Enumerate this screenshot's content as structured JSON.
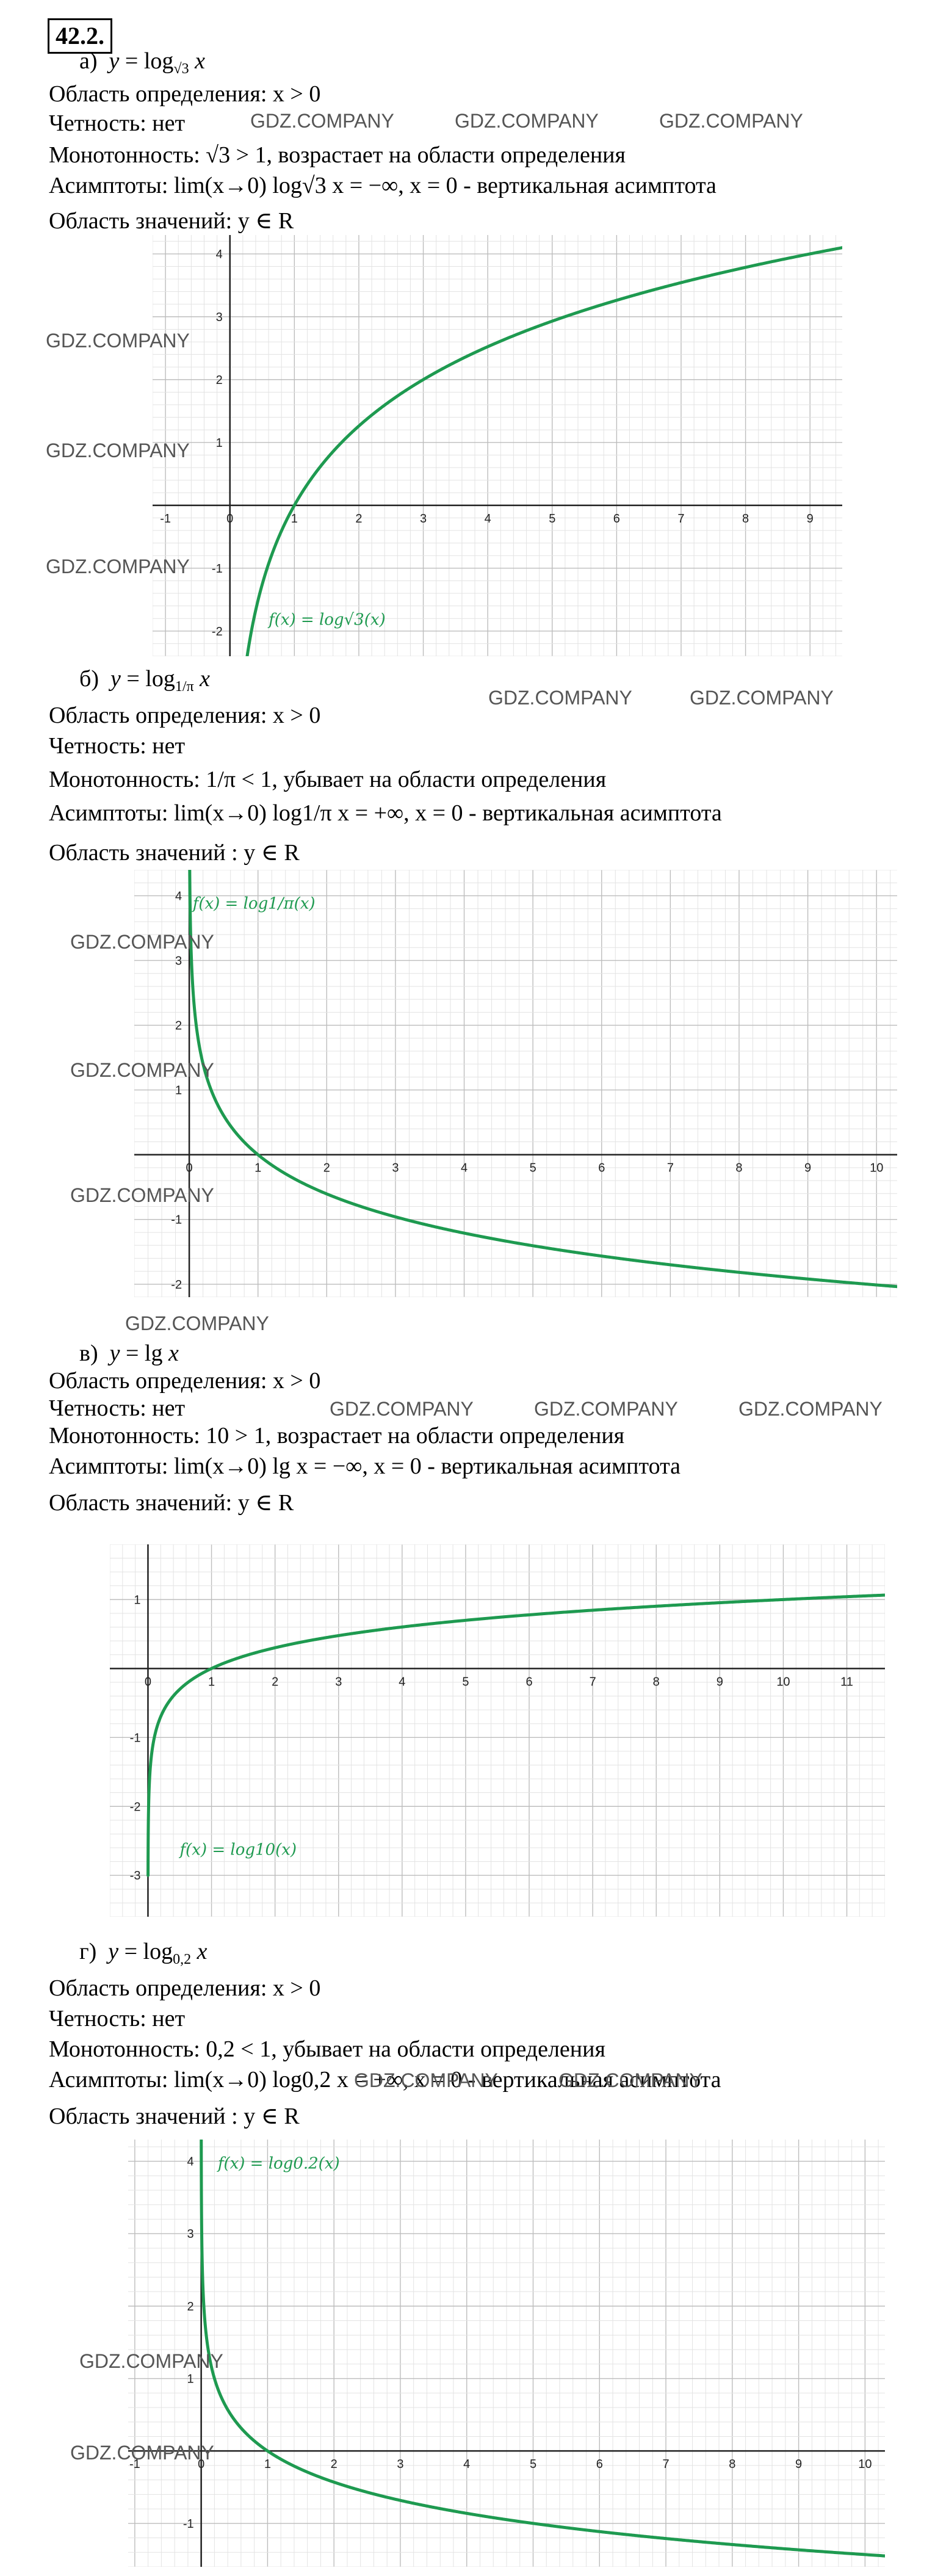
{
  "problem": "42.2.",
  "watermark": "GDZ.COMPANY",
  "sections": [
    {
      "letter": "а)",
      "func": "y = log√3 x",
      "domain": "Область определения: x > 0",
      "parity": "Четность: нет",
      "mono": "Монотонность: √3 > 1, возрастает на области определения",
      "asym": "Асимптоты: lim(x→0) log√3 x = −∞, x = 0 - вертикальная асимптота",
      "range": "Область значений: y ∈ R",
      "legend": "f(x) = log√3(x)"
    },
    {
      "letter": "б)",
      "func": "y = log1/π x",
      "domain": "Область определения: x > 0",
      "parity": "Четность: нет",
      "mono": "Монотонность: 1/π < 1, убывает на области определения",
      "asym": "Асимптоты: lim(x→0) log1/π x = +∞, x = 0 - вертикальная асимптота",
      "range": "Область значений : y ∈ R",
      "legend": "f(x) = log1/π(x)"
    },
    {
      "letter": "в)",
      "func": "y = lg x",
      "domain": "Область определения: x > 0",
      "parity": "Четность: нет",
      "mono": "Монотонность: 10 > 1, возрастает на области определения",
      "asym": "Асимптоты: lim(x→0) lg x = −∞, x = 0 - вертикальная асимптота",
      "range": "Область значений: y ∈ R",
      "legend": "f(x) = log10(x)"
    },
    {
      "letter": "г)",
      "func": "y = log0,2 x",
      "domain": "Область определения: x > 0",
      "parity": "Четность: нет",
      "mono": "Монотонность: 0,2 < 1, убывает на области определения",
      "asym": "Асимптоты: lim(x→0) log0,2 x = +∞, x = 0 - вертикальная асимптота",
      "range": "Область значений : y ∈ R",
      "legend": "f(x) = log0.2(x)"
    }
  ],
  "chart_data": [
    {
      "type": "line",
      "function": "log_sqrt3(x)",
      "base": 1.7320508,
      "xlim": [
        -1.2,
        9.5
      ],
      "ylim": [
        -2.4,
        4.3
      ],
      "xticks": [
        "-1",
        "0",
        "1",
        "2",
        "3",
        "4",
        "5",
        "6",
        "7",
        "8",
        "9"
      ],
      "yticks": [
        "-2",
        "-1",
        "1",
        "2",
        "3",
        "4"
      ],
      "color": "#1e9a50",
      "grid": true
    },
    {
      "type": "line",
      "function": "log_(1/pi)(x)",
      "base": 0.31831,
      "xlim": [
        -0.8,
        10.3
      ],
      "ylim": [
        -2.2,
        4.4
      ],
      "xticks": [
        "0",
        "1",
        "2",
        "3",
        "4",
        "5",
        "6",
        "7",
        "8",
        "9",
        "10"
      ],
      "yticks": [
        "-2",
        "-1",
        "1",
        "2",
        "3",
        "4"
      ],
      "color": "#1e9a50",
      "grid": true
    },
    {
      "type": "line",
      "function": "log10(x)",
      "base": 10,
      "xlim": [
        -0.6,
        11.6
      ],
      "ylim": [
        -3.6,
        1.8
      ],
      "xticks": [
        "0",
        "1",
        "2",
        "3",
        "4",
        "5",
        "6",
        "7",
        "8",
        "9",
        "10",
        "11"
      ],
      "yticks": [
        "-3",
        "-2",
        "-1",
        "1"
      ],
      "color": "#1e9a50",
      "grid": true
    },
    {
      "type": "line",
      "function": "log0.2(x)",
      "base": 0.2,
      "xlim": [
        -1.1,
        10.3
      ],
      "ylim": [
        -1.6,
        4.3
      ],
      "xticks": [
        "-1",
        "0",
        "1",
        "2",
        "3",
        "4",
        "5",
        "6",
        "7",
        "8",
        "9",
        "10"
      ],
      "yticks": [
        "-1",
        "1",
        "2",
        "3",
        "4"
      ],
      "color": "#1e9a50",
      "grid": true
    }
  ]
}
